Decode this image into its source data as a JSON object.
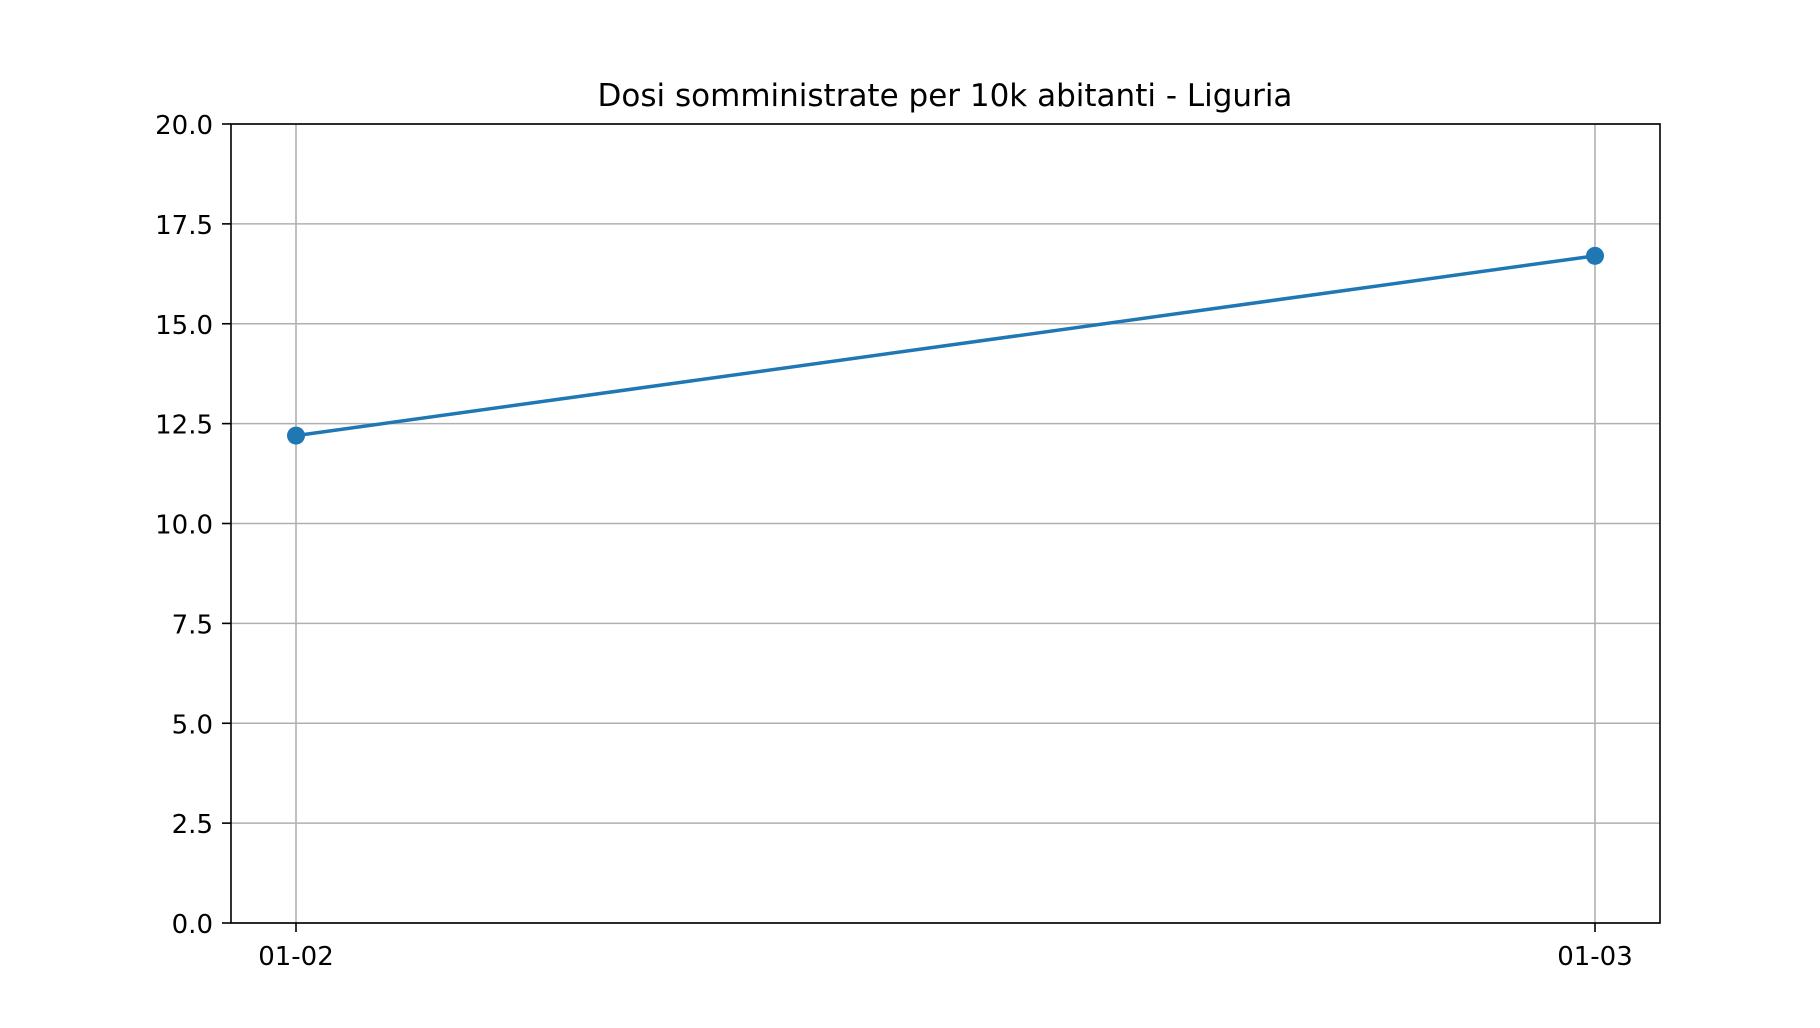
{
  "chart_data": {
    "type": "line",
    "title": "Dosi somministrate per 10k abitanti - Liguria",
    "xlabel": "",
    "ylabel": "",
    "categories": [
      "01-02",
      "01-03"
    ],
    "series": [
      {
        "values": [
          12.2,
          16.7
        ],
        "color": "#1f77b4",
        "marker": "circle"
      }
    ],
    "ylim": [
      0,
      20
    ],
    "yticks": [
      "0.0",
      "2.5",
      "5.0",
      "7.5",
      "10.0",
      "12.5",
      "15.0",
      "17.5",
      "20.0"
    ],
    "ytick_values": [
      0,
      2.5,
      5,
      7.5,
      10,
      12.5,
      15,
      17.5,
      20
    ],
    "grid": true,
    "legend": "none"
  }
}
